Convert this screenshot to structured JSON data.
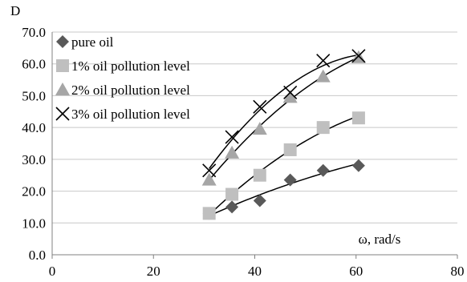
{
  "chart_data": {
    "type": "scatter",
    "ylabel": "D",
    "xlabel": "ω, rad/s",
    "xlim": [
      0,
      80
    ],
    "ylim": [
      0,
      70
    ],
    "x_ticks": [
      "0",
      "20",
      "40",
      "60",
      "80"
    ],
    "y_ticks": [
      "0.0",
      "10.0",
      "20.0",
      "30.0",
      "40.0",
      "50.0",
      "60.0",
      "70.0"
    ],
    "grid": "horizontal",
    "legend_position": "top-left",
    "trendlines": true,
    "series": [
      {
        "name": "pure oil",
        "marker": "diamond",
        "color": "#595959",
        "x": [
          31,
          35.5,
          41,
          47,
          53.5,
          60.5
        ],
        "y": [
          13,
          15,
          17,
          23.5,
          26.5,
          28
        ]
      },
      {
        "name": "1% oil pollution level",
        "marker": "square",
        "color": "#bfbfbf",
        "x": [
          31,
          35.5,
          41,
          47,
          53.5,
          60.5
        ],
        "y": [
          13,
          19,
          25,
          33,
          40,
          43
        ]
      },
      {
        "name": "2% oil pollution level",
        "marker": "triangle",
        "color": "#a6a6a6",
        "x": [
          31,
          35.5,
          41,
          47,
          53.5,
          60.5
        ],
        "y": [
          23.5,
          32,
          39.5,
          49.5,
          56,
          62
        ]
      },
      {
        "name": "3% oil pollution level",
        "marker": "x",
        "color": "#000000",
        "x": [
          31,
          35.5,
          41,
          47,
          53.5,
          60.5
        ],
        "y": [
          26.5,
          37,
          46.5,
          51,
          61,
          62.5
        ]
      }
    ]
  }
}
